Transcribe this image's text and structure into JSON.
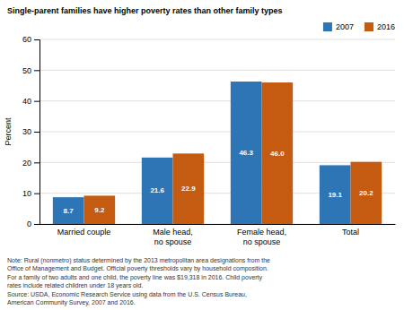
{
  "chart_data": {
    "type": "bar",
    "title": "Single-parent families have higher poverty rates than other family types",
    "ylabel": "Percent",
    "categories": [
      "Married couple",
      "Male head,\nno spouse",
      "Female head,\nno spouse",
      "Total"
    ],
    "series": [
      {
        "name": "2007",
        "color": "#2E75B6",
        "values": [
          8.7,
          21.6,
          46.3,
          19.1
        ],
        "value_labels": [
          "8.7",
          "21.6",
          "46.3",
          "19.1"
        ]
      },
      {
        "name": "2016",
        "color": "#C55A11",
        "values": [
          9.2,
          22.9,
          46.0,
          20.2
        ],
        "value_labels": [
          "9.2",
          "22.9",
          "46.0",
          "20.2"
        ]
      }
    ],
    "ylim": [
      0,
      60
    ],
    "yticks": [
      0,
      10,
      20,
      30,
      40,
      50,
      60
    ],
    "grid": true,
    "legend": "upper right",
    "data_labels": true,
    "annotations": [
      "Note: Rural (nonmetro) status determined by the 2013 metropolitan area designations from the\nOffice of Management and Budget. Official poverty thresholds vary by household composition.\nFor a family of two adults and one child, the poverty line was $19,318 in 2016. Child poverty\nrates include related children under 18 years old.\nSource: USDA, Economic Research Service using data from the U.S. Census Bureau,\nAmerican Community Survey, 2007 and 2016."
    ]
  }
}
